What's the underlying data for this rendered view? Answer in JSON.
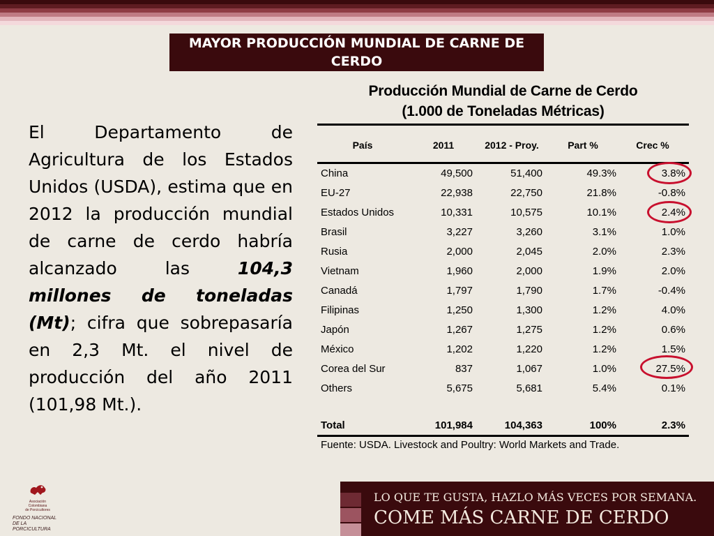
{
  "colors": {
    "stripes": [
      "#3a0a0d",
      "#5e1c21",
      "#8e3c44",
      "#bf7b84",
      "#e3b7bd",
      "#f4d9dc"
    ],
    "title_bg": "#3a0a0d",
    "highlight_circle": "#c8102e",
    "banner_squares": [
      "#6e2a33",
      "#9c5460",
      "#c58f98"
    ]
  },
  "slide": {
    "title": "MAYOR PRODUCCIÓN MUNDIAL DE CARNE DE CERDO",
    "body": {
      "text_1": "El Departamento de Agricultura de los Estados Unidos (USDA), estima que en 2012 la producción mundial de carne de cerdo habría alcanzado las ",
      "emphasis": "104,3 millones de toneladas (Mt)",
      "text_2": "; cifra que sobrepasaría en 2,3 Mt. el nivel de producción del año 2011 (101,98 Mt.)."
    }
  },
  "table": {
    "title_line1": "Producción Mundial de Carne de Cerdo",
    "title_line2": "(1.000 de Toneladas Métricas)",
    "headers": [
      "País",
      "2011",
      "2012 - Proy.",
      "Part %",
      "Crec %"
    ],
    "rows": [
      [
        "China",
        "49,500",
        "51,400",
        "49.3%",
        "3.8%"
      ],
      [
        "EU-27",
        "22,938",
        "22,750",
        "21.8%",
        "-0.8%"
      ],
      [
        "Estados Unidos",
        "10,331",
        "10,575",
        "10.1%",
        "2.4%"
      ],
      [
        "Brasil",
        "3,227",
        "3,260",
        "3.1%",
        "1.0%"
      ],
      [
        "Rusia",
        "2,000",
        "2,045",
        "2.0%",
        "2.3%"
      ],
      [
        "Vietnam",
        "1,960",
        "2,000",
        "1.9%",
        "2.0%"
      ],
      [
        "Canadá",
        "1,797",
        "1,790",
        "1.7%",
        "-0.4%"
      ],
      [
        "Filipinas",
        "1,250",
        "1,300",
        "1.2%",
        "4.0%"
      ],
      [
        "Japón",
        "1,267",
        "1,275",
        "1.2%",
        "0.6%"
      ],
      [
        "México",
        "1,202",
        "1,220",
        "1.2%",
        "1.5%"
      ],
      [
        "Corea del Sur",
        "837",
        "1,067",
        "1.0%",
        "27.5%"
      ],
      [
        "Others",
        "5,675",
        "5,681",
        "5.4%",
        "0.1%"
      ]
    ],
    "total": [
      "Total",
      "101,984",
      "104,363",
      "100%",
      "2.3%"
    ],
    "source": "Fuente: USDA. Livestock and Poultry: World Markets and Trade."
  },
  "logo": {
    "line1": "Asociación",
    "line2": "Colombiana",
    "line3": "de Porcicultores",
    "fondo1": "FONDO NACIONAL",
    "fondo2": "DE LA PORCICULTURA"
  },
  "banner": {
    "line1": "LO QUE TE GUSTA, HAZLO MÁS VECES POR SEMANA.",
    "line2": "COME MÁS CARNE DE CERDO"
  }
}
